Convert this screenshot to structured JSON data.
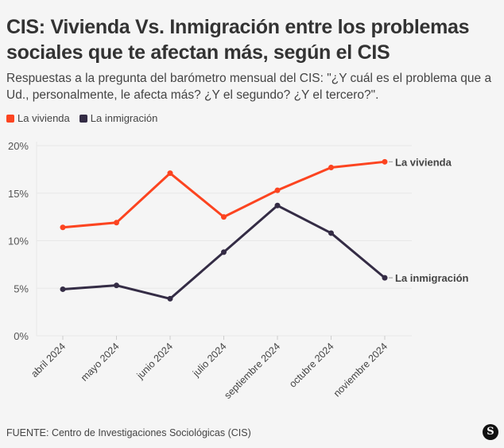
{
  "title": "CIS: Vivienda Vs. Inmigración entre los problemas sociales que te afectan más, según el CIS",
  "subtitle": "Respuestas a la pregunta del barómetro mensual del CIS: \"¿Y cuál es el problema que a Ud., personalmente, le afecta más? ¿Y el segundo? ¿Y el tercero?\".",
  "source": "FUENTE: Centro de Investigaciones Sociológicas (CIS)",
  "logo_text": "S",
  "chart_data": {
    "type": "line",
    "categories": [
      "abril 2024",
      "mayo 2024",
      "junio 2024",
      "julio 2024",
      "septiembre 2024",
      "octubre 2024",
      "noviembre 2024"
    ],
    "series": [
      {
        "name": "La vivienda",
        "color": "#fc4420",
        "values": [
          11.4,
          11.9,
          17.1,
          12.5,
          15.3,
          17.7,
          18.3
        ]
      },
      {
        "name": "La inmigración",
        "color": "#342c45",
        "values": [
          4.9,
          5.3,
          3.9,
          8.8,
          13.7,
          10.8,
          6.1
        ]
      }
    ],
    "yticks": [
      "0%",
      "5%",
      "10%",
      "15%",
      "20%"
    ],
    "ylim": [
      0,
      20
    ],
    "grid": true,
    "legend": "top-left"
  }
}
